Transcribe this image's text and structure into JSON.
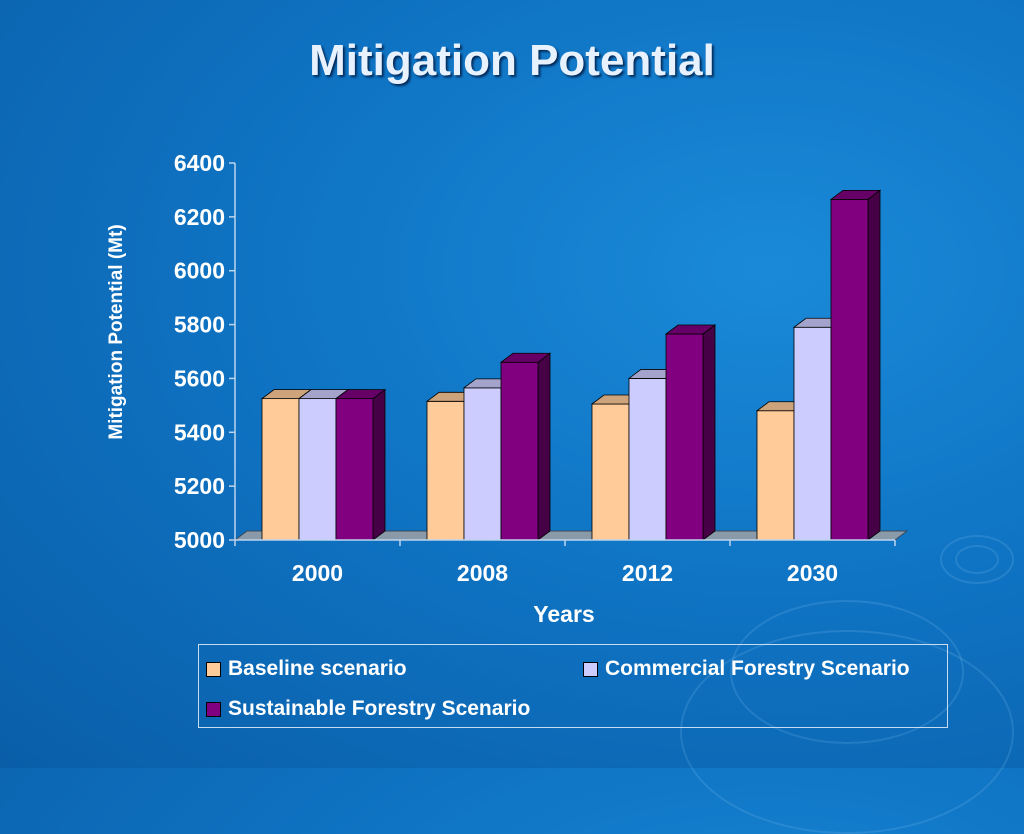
{
  "slide": {
    "title": "Mitigation Potential"
  },
  "chart_data": {
    "type": "bar",
    "title": "Mitigation Potential",
    "xlabel": "Years",
    "ylabel": "Mitigation Potential (Mt)",
    "categories": [
      "2000",
      "2008",
      "2012",
      "2030"
    ],
    "ylim": [
      5000,
      6400
    ],
    "yticks": [
      5000,
      5200,
      5400,
      5600,
      5800,
      6000,
      6200,
      6400
    ],
    "grid": false,
    "legend_position": "bottom",
    "series": [
      {
        "name": "Baseline scenario",
        "color": "#ffcc99",
        "values": [
          5525,
          5515,
          5505,
          5480
        ]
      },
      {
        "name": "Commercial Forestry Scenario",
        "color": "#ccccff",
        "values": [
          5525,
          5565,
          5600,
          5790
        ]
      },
      {
        "name": "Sustainable Forestry Scenario",
        "color": "#800080",
        "values": [
          5525,
          5660,
          5765,
          6265
        ]
      }
    ]
  }
}
